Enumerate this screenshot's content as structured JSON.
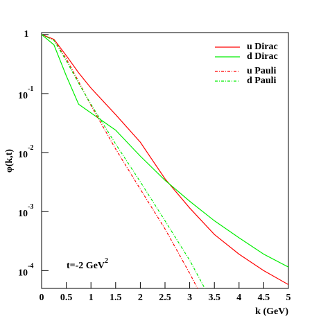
{
  "chart_data": {
    "type": "line",
    "y_label": "φ(k,t)",
    "x_label": "k (GeV)",
    "annotation": {
      "text": "t=-2 GeV",
      "superscript": "2"
    },
    "x": [
      0,
      0.25,
      0.5,
      0.75,
      1.0,
      1.5,
      2.0,
      2.5,
      3.0,
      3.5,
      4.0,
      4.5,
      5.0
    ],
    "series": [
      {
        "name": "u Dirac",
        "color": "#ff0000",
        "dash": false,
        "values": [
          1,
          0.83,
          0.44,
          0.225,
          0.124,
          0.044,
          0.015,
          0.0036,
          0.00115,
          0.00041,
          0.00019,
          0.0001,
          5.8e-05
        ]
      },
      {
        "name": "d Dirac",
        "color": "#00ee00",
        "dash": false,
        "values": [
          1,
          0.67,
          0.2,
          0.066,
          0.047,
          0.024,
          0.0087,
          0.0034,
          0.0015,
          0.0007,
          0.00036,
          0.00019,
          0.000115
        ]
      },
      {
        "name": "u Pauli",
        "color": "#ff0000",
        "dash": true,
        "values": [
          1,
          0.8,
          0.39,
          0.16,
          0.063,
          0.0115,
          0.0024,
          0.00051,
          9e-05,
          1.4e-05,
          null,
          null,
          null
        ]
      },
      {
        "name": "d Pauli",
        "color": "#00ee00",
        "dash": true,
        "values": [
          1,
          0.8,
          0.36,
          0.15,
          0.066,
          0.014,
          0.0032,
          0.0007,
          0.00015,
          2.5e-05,
          null,
          null,
          null
        ]
      }
    ],
    "xlim": [
      0,
      5
    ],
    "xticks": [
      0,
      0.5,
      1,
      1.5,
      2,
      2.5,
      3,
      3.5,
      4,
      4.5,
      5
    ],
    "ylim": [
      5e-05,
      1.08
    ],
    "log_y": true,
    "yticks": [
      1,
      {
        "value": 0.1,
        "label": "10",
        "exponent": "-1"
      },
      {
        "value": 0.01,
        "label": "10",
        "exponent": "-2"
      },
      {
        "value": 0.001,
        "label": "10",
        "exponent": "-3"
      },
      {
        "value": 0.0001,
        "label": "10",
        "exponent": "-4"
      }
    ],
    "legend": "top-right"
  }
}
